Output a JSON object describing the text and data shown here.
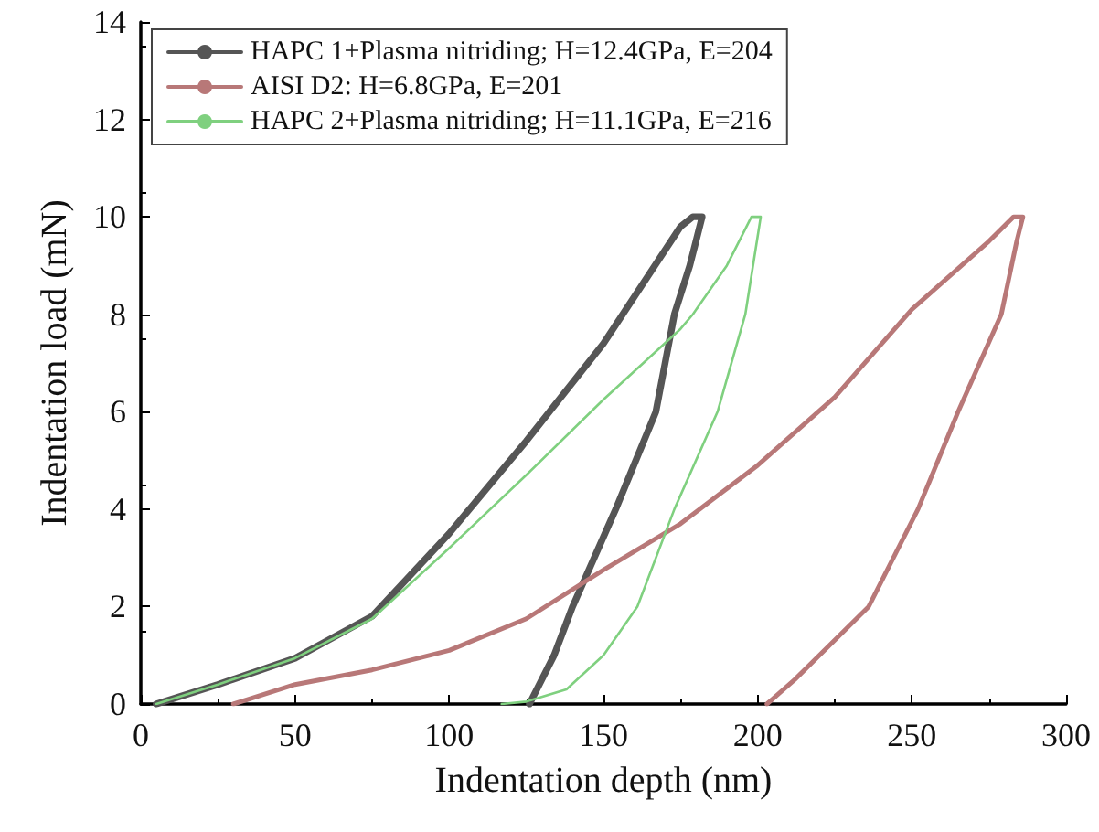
{
  "chart_data": {
    "type": "line",
    "xlabel": "Indentation depth (nm)",
    "ylabel": "Indentation load (mN)",
    "xlim": [
      0,
      300
    ],
    "xticks": [
      0,
      50,
      100,
      150,
      200,
      250,
      300
    ],
    "ylim": [
      0,
      14
    ],
    "yticks": [
      0,
      2,
      4,
      6,
      8,
      10,
      12,
      14
    ],
    "grid": false,
    "legend": "top left",
    "marker": "none",
    "line_style": "solid",
    "series": [
      {
        "name": "HAPC 1+Plasma nitriding; H=12.4GPa, E=204",
        "color": "#555555",
        "x": [
          5,
          25,
          50,
          75,
          100,
          125,
          150,
          175,
          179,
          182,
          178,
          173,
          167,
          154,
          140,
          134,
          126
        ],
        "values": [
          0,
          0.4,
          0.94,
          1.8,
          3.5,
          5.4,
          7.4,
          9.8,
          10,
          10,
          9,
          8,
          6,
          4,
          2,
          1,
          0
        ]
      },
      {
        "name": "AISI D2: H=6.8GPa, E=201",
        "color": "#b87878",
        "x": [
          30,
          50,
          75,
          100,
          125,
          150,
          175,
          200,
          225,
          250,
          275,
          283,
          286,
          284,
          279,
          265,
          252,
          236,
          220,
          212,
          203
        ],
        "values": [
          0,
          0.4,
          0.7,
          1.1,
          1.75,
          2.75,
          3.7,
          4.9,
          6.3,
          8.1,
          9.5,
          10,
          10,
          9.5,
          8,
          6,
          4,
          2,
          1,
          0.5,
          0
        ]
      },
      {
        "name": "HAPC 2+Plasma nitriding; H=11.1GPa, E=216",
        "color": "#7fd07f",
        "x": [
          5,
          25,
          50,
          75,
          100,
          125,
          150,
          175,
          179,
          190,
          198,
          201,
          199,
          196,
          187,
          173,
          161,
          150,
          138,
          125,
          117
        ],
        "values": [
          0,
          0.4,
          0.94,
          1.75,
          3.2,
          4.7,
          6.25,
          7.7,
          8,
          9,
          10,
          10,
          9.2,
          8,
          6,
          4,
          2,
          1,
          0.3,
          0.05,
          0
        ]
      }
    ]
  }
}
